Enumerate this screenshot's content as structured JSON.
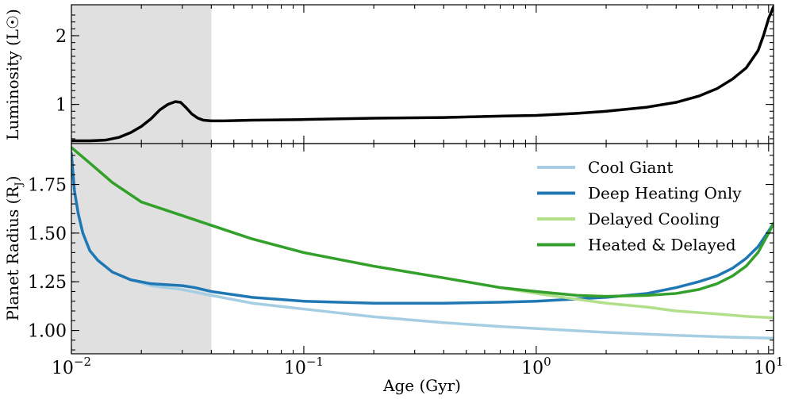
{
  "chart_data": [
    {
      "type": "line",
      "panel": "top",
      "title": "",
      "xlabel": "",
      "ylabel": "Luminosity (L☉)",
      "xscale": "log",
      "xlim": [
        0.01,
        10.5
      ],
      "ylim": [
        0.43,
        2.45
      ],
      "yticks": [
        1,
        2
      ],
      "ytick_labels": [
        "1",
        "2"
      ],
      "shaded_region": {
        "x_from": 0.01,
        "x_to": 0.04
      },
      "series": [
        {
          "name": "Luminosity",
          "color": "#000000",
          "x": [
            0.01,
            0.012,
            0.014,
            0.016,
            0.018,
            0.02,
            0.022,
            0.024,
            0.026,
            0.028,
            0.0295,
            0.031,
            0.033,
            0.035,
            0.037,
            0.04,
            0.045,
            0.06,
            0.1,
            0.2,
            0.4,
            0.7,
            1.0,
            1.5,
            2.0,
            3.0,
            4.0,
            5.0,
            6.0,
            7.0,
            8.0,
            9.0,
            9.5,
            10.0,
            10.5
          ],
          "y": [
            0.47,
            0.47,
            0.48,
            0.52,
            0.59,
            0.68,
            0.79,
            0.92,
            1.0,
            1.04,
            1.03,
            0.96,
            0.86,
            0.8,
            0.77,
            0.76,
            0.76,
            0.77,
            0.78,
            0.8,
            0.81,
            0.83,
            0.84,
            0.87,
            0.9,
            0.96,
            1.03,
            1.12,
            1.23,
            1.37,
            1.53,
            1.78,
            2.0,
            2.25,
            2.42
          ]
        }
      ]
    },
    {
      "type": "line",
      "panel": "bottom",
      "title": "",
      "xlabel": "Age (Gyr)",
      "ylabel": "Planet Radius (R",
      "ylabel_subscript": "J",
      "ylabel_close": ")",
      "xscale": "log",
      "xlim": [
        0.01,
        10.5
      ],
      "ylim": [
        0.88,
        1.96
      ],
      "yticks": [
        1.0,
        1.25,
        1.5,
        1.75
      ],
      "ytick_labels": [
        "1.00",
        "1.25",
        "1.50",
        "1.75"
      ],
      "xticks": [
        0.01,
        0.1,
        1,
        10
      ],
      "xtick_base": [
        "10",
        "10",
        "10",
        "10"
      ],
      "xtick_exponents": [
        "−2",
        "−1",
        "0",
        "1"
      ],
      "shaded_region": {
        "x_from": 0.01,
        "x_to": 0.04
      },
      "legend_position": "upper right",
      "series": [
        {
          "name": "Cool Giant",
          "color": "#a6cee3",
          "x": [
            0.01,
            0.0103,
            0.0107,
            0.0112,
            0.012,
            0.013,
            0.015,
            0.018,
            0.022,
            0.03,
            0.04,
            0.06,
            0.1,
            0.2,
            0.4,
            0.7,
            1.0,
            2.0,
            4.0,
            7.0,
            10.5
          ],
          "y": [
            1.91,
            1.72,
            1.6,
            1.5,
            1.41,
            1.36,
            1.3,
            1.26,
            1.23,
            1.21,
            1.18,
            1.14,
            1.11,
            1.07,
            1.04,
            1.02,
            1.01,
            0.99,
            0.975,
            0.965,
            0.96
          ]
        },
        {
          "name": "Deep Heating Only",
          "color": "#1f78b4",
          "x": [
            0.01,
            0.0103,
            0.0107,
            0.0112,
            0.012,
            0.013,
            0.015,
            0.018,
            0.022,
            0.03,
            0.034,
            0.04,
            0.06,
            0.1,
            0.2,
            0.4,
            0.7,
            1.0,
            2.0,
            3.0,
            4.0,
            5.0,
            6.0,
            7.0,
            8.0,
            9.0,
            10.0,
            10.5
          ],
          "y": [
            1.91,
            1.72,
            1.6,
            1.5,
            1.41,
            1.36,
            1.3,
            1.26,
            1.24,
            1.23,
            1.22,
            1.2,
            1.17,
            1.15,
            1.14,
            1.14,
            1.145,
            1.15,
            1.17,
            1.19,
            1.22,
            1.25,
            1.28,
            1.32,
            1.37,
            1.43,
            1.51,
            1.55
          ]
        },
        {
          "name": "Delayed Cooling",
          "color": "#b2df8a",
          "x": [
            0.01,
            0.012,
            0.015,
            0.02,
            0.03,
            0.04,
            0.06,
            0.1,
            0.2,
            0.4,
            0.7,
            1.0,
            1.5,
            2.0,
            3.0,
            4.0,
            6.0,
            8.0,
            10.5
          ],
          "y": [
            1.94,
            1.86,
            1.76,
            1.66,
            1.59,
            1.54,
            1.47,
            1.4,
            1.33,
            1.27,
            1.22,
            1.19,
            1.16,
            1.14,
            1.12,
            1.1,
            1.085,
            1.072,
            1.065
          ]
        },
        {
          "name": "Heated & Delayed",
          "color": "#33a02c",
          "x": [
            0.01,
            0.012,
            0.015,
            0.02,
            0.03,
            0.04,
            0.06,
            0.1,
            0.2,
            0.4,
            0.7,
            1.0,
            1.5,
            2.0,
            3.0,
            4.0,
            5.0,
            6.0,
            7.0,
            8.0,
            9.0,
            10.0,
            10.5
          ],
          "y": [
            1.94,
            1.86,
            1.76,
            1.66,
            1.59,
            1.54,
            1.47,
            1.4,
            1.33,
            1.27,
            1.22,
            1.2,
            1.18,
            1.175,
            1.18,
            1.19,
            1.21,
            1.24,
            1.28,
            1.33,
            1.4,
            1.5,
            1.55
          ]
        }
      ]
    }
  ]
}
